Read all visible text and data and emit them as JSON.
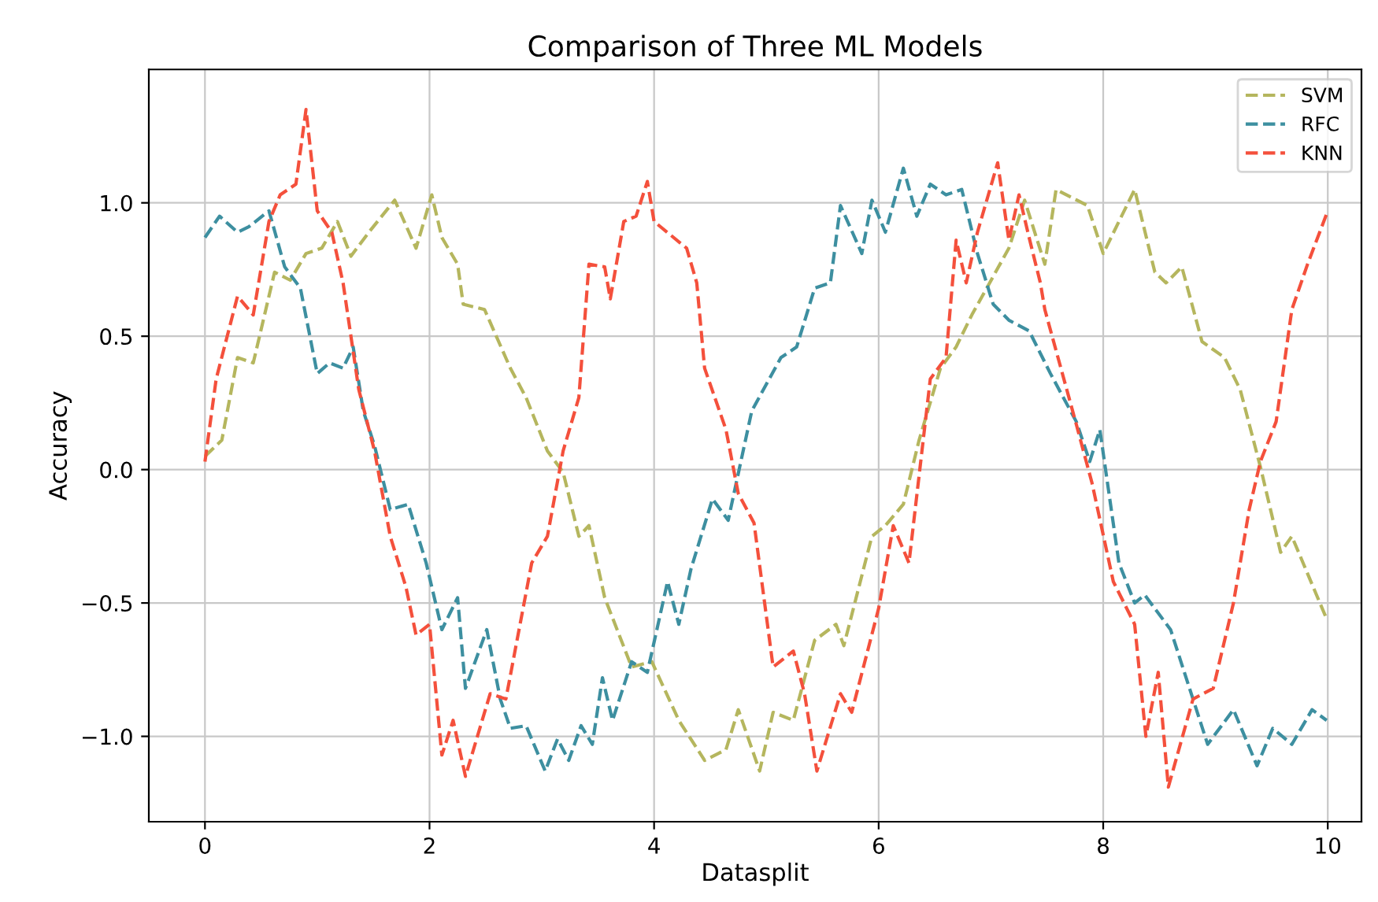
{
  "chart_data": {
    "type": "line",
    "title": "Comparison of Three ML Models",
    "xlabel": "Datasplit",
    "ylabel": "Accuracy",
    "series": [
      {
        "name": "SVM",
        "color": "#b5b65e",
        "x": [
          0,
          0.15,
          0.29,
          0.43,
          0.62,
          0.76,
          0.9,
          1.04,
          1.18,
          1.3,
          1.46,
          1.69,
          1.88,
          2.02,
          2.11,
          2.25,
          2.3,
          2.49,
          2.72,
          2.86,
          3.05,
          3.19,
          3.33,
          3.42,
          3.56,
          3.8,
          3.98,
          4.22,
          4.45,
          4.64,
          4.75,
          4.94,
          5.06,
          5.24,
          5.43,
          5.62,
          5.69,
          5.94,
          6.06,
          6.22,
          6.36,
          6.55,
          6.69,
          6.83,
          7.16,
          7.3,
          7.48,
          7.58,
          7.86,
          8.0,
          8.28,
          8.46,
          8.56,
          8.7,
          8.88,
          9.08,
          9.22,
          9.4,
          9.58,
          9.68,
          9.99
        ],
        "values": [
          0.05,
          0.11,
          0.42,
          0.4,
          0.74,
          0.71,
          0.81,
          0.83,
          0.93,
          0.8,
          0.89,
          1.01,
          0.83,
          1.03,
          0.87,
          0.77,
          0.62,
          0.6,
          0.38,
          0.27,
          0.07,
          -0.01,
          -0.25,
          -0.21,
          -0.48,
          -0.74,
          -0.72,
          -0.94,
          -1.09,
          -1.05,
          -0.9,
          -1.13,
          -0.91,
          -0.94,
          -0.64,
          -0.58,
          -0.66,
          -0.25,
          -0.21,
          -0.13,
          0.11,
          0.38,
          0.46,
          0.58,
          0.83,
          1.01,
          0.77,
          1.05,
          0.99,
          0.81,
          1.05,
          0.74,
          0.7,
          0.76,
          0.48,
          0.42,
          0.3,
          0.01,
          -0.31,
          -0.25,
          -0.56
        ]
      },
      {
        "name": "RFC",
        "color": "#3d8fa0",
        "x": [
          0,
          0.13,
          0.29,
          0.39,
          0.57,
          0.71,
          0.85,
          1.0,
          1.11,
          1.23,
          1.32,
          1.41,
          1.51,
          1.65,
          1.81,
          1.97,
          2.11,
          2.25,
          2.32,
          2.51,
          2.63,
          2.72,
          2.86,
          3.03,
          3.14,
          3.24,
          3.35,
          3.45,
          3.54,
          3.63,
          3.8,
          3.94,
          4.12,
          4.22,
          4.33,
          4.52,
          4.66,
          4.87,
          5.13,
          5.27,
          5.43,
          5.57,
          5.66,
          5.85,
          5.94,
          6.06,
          6.22,
          6.34,
          6.46,
          6.6,
          6.74,
          6.88,
          7.02,
          7.16,
          7.34,
          7.53,
          7.76,
          7.88,
          7.97,
          8.14,
          8.28,
          8.37,
          8.6,
          8.93,
          9.16,
          9.37,
          9.51,
          9.68,
          9.86,
          9.99
        ],
        "values": [
          0.87,
          0.95,
          0.89,
          0.91,
          0.97,
          0.76,
          0.68,
          0.36,
          0.4,
          0.38,
          0.46,
          0.22,
          0.09,
          -0.15,
          -0.13,
          -0.35,
          -0.6,
          -0.48,
          -0.82,
          -0.6,
          -0.86,
          -0.97,
          -0.96,
          -1.13,
          -1.01,
          -1.09,
          -0.96,
          -1.03,
          -0.78,
          -0.94,
          -0.72,
          -0.76,
          -0.42,
          -0.58,
          -0.37,
          -0.11,
          -0.19,
          0.22,
          0.42,
          0.46,
          0.68,
          0.7,
          0.99,
          0.81,
          1.01,
          0.89,
          1.13,
          0.95,
          1.07,
          1.03,
          1.05,
          0.81,
          0.62,
          0.56,
          0.52,
          0.36,
          0.18,
          0.03,
          0.15,
          -0.35,
          -0.5,
          -0.47,
          -0.6,
          -1.03,
          -0.9,
          -1.11,
          -0.97,
          -1.03,
          -0.9,
          -0.94
        ]
      },
      {
        "name": "KNN",
        "color": "#f4503c",
        "x": [
          0,
          0.1,
          0.29,
          0.43,
          0.57,
          0.67,
          0.81,
          0.9,
          1.0,
          1.13,
          1.23,
          1.37,
          1.51,
          1.65,
          1.79,
          1.88,
          2.0,
          2.11,
          2.21,
          2.32,
          2.54,
          2.68,
          2.91,
          3.05,
          3.19,
          3.33,
          3.42,
          3.56,
          3.61,
          3.73,
          3.84,
          3.94,
          4.0,
          4.29,
          4.38,
          4.45,
          4.64,
          4.75,
          4.89,
          5.06,
          5.24,
          5.34,
          5.45,
          5.66,
          5.76,
          6.0,
          6.13,
          6.27,
          6.46,
          6.6,
          6.69,
          6.78,
          6.88,
          7.06,
          7.16,
          7.25,
          7.34,
          7.44,
          7.48,
          7.76,
          7.9,
          8.09,
          8.28,
          8.38,
          8.49,
          8.58,
          8.8,
          8.98,
          9.16,
          9.3,
          9.4,
          9.54,
          9.68,
          9.82,
          10.0
        ],
        "values": [
          0.03,
          0.34,
          0.65,
          0.58,
          0.93,
          1.03,
          1.07,
          1.35,
          0.97,
          0.89,
          0.7,
          0.3,
          0.07,
          -0.25,
          -0.44,
          -0.62,
          -0.58,
          -1.07,
          -0.94,
          -1.15,
          -0.84,
          -0.86,
          -0.35,
          -0.25,
          0.07,
          0.27,
          0.77,
          0.76,
          0.64,
          0.93,
          0.95,
          1.08,
          0.93,
          0.83,
          0.7,
          0.38,
          0.15,
          -0.09,
          -0.2,
          -0.74,
          -0.68,
          -0.84,
          -1.13,
          -0.84,
          -0.91,
          -0.52,
          -0.21,
          -0.35,
          0.34,
          0.42,
          0.86,
          0.7,
          0.89,
          1.15,
          0.86,
          1.03,
          0.87,
          0.7,
          0.6,
          0.17,
          -0.05,
          -0.42,
          -0.58,
          -1.0,
          -0.76,
          -1.19,
          -0.86,
          -0.82,
          -0.5,
          -0.15,
          0.03,
          0.18,
          0.6,
          0.77,
          0.97
        ]
      }
    ],
    "xlim": [
      -0.5,
      10.3
    ],
    "ylim": [
      -1.32,
      1.5
    ],
    "xticks": [
      0,
      2,
      4,
      6,
      8,
      10
    ],
    "yticks": [
      {
        "value": -1,
        "label": "−1.0"
      },
      {
        "value": -0.5,
        "label": "−0.5"
      },
      {
        "value": 0,
        "label": "0.0"
      },
      {
        "value": 0.5,
        "label": "0.5"
      },
      {
        "value": 1,
        "label": "1.0"
      }
    ],
    "grid": true,
    "legend": "top right",
    "line_style": "dashed",
    "marker": "none"
  }
}
